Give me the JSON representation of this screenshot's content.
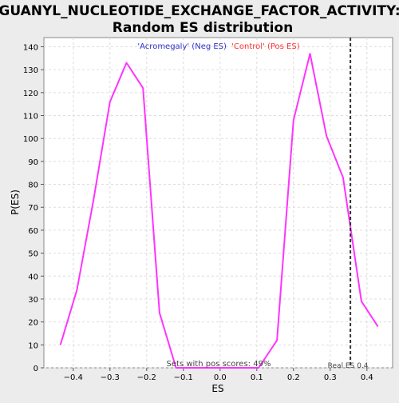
{
  "chart_data": {
    "type": "line",
    "title_line1": "GUANYL_NUCLEOTIDE_EXCHANGE_FACTOR_ACTIVITY:",
    "title_line2": "Random ES distribution",
    "xlabel": "ES",
    "ylabel": "P(ES)",
    "xlim": [
      -0.48,
      0.47
    ],
    "ylim": [
      0,
      144
    ],
    "x_ticks": [
      -0.4,
      -0.3,
      -0.2,
      -0.1,
      0.0,
      0.1,
      0.2,
      0.3,
      0.4
    ],
    "x_tick_labels": [
      "−0.4",
      "−0.3",
      "−0.2",
      "−0.1",
      "0.0",
      "0.1",
      "0.2",
      "0.3",
      "0.4"
    ],
    "y_ticks": [
      0,
      10,
      20,
      30,
      40,
      50,
      60,
      70,
      80,
      90,
      100,
      110,
      120,
      130,
      140
    ],
    "grid": true,
    "legend": {
      "neg_label": "'Acromegaly' (Neg ES)",
      "pos_label": "'Control' (Pos ES)",
      "placement": "top-center"
    },
    "series": [
      {
        "x": [
          -0.435,
          -0.39,
          -0.345,
          -0.3,
          -0.255,
          -0.21,
          -0.165,
          -0.12,
          -0.075,
          -0.03,
          0.015,
          0.06,
          0.105,
          0.155,
          0.2,
          0.245,
          0.29,
          0.335,
          0.385,
          0.43
        ],
        "y": [
          10,
          34,
          73,
          116,
          133,
          122,
          24,
          0,
          0,
          0,
          0,
          0,
          0,
          12,
          108,
          137,
          101,
          83,
          29,
          18
        ]
      }
    ],
    "real_es": 0.355,
    "real_es_label": "Real ES 0.4",
    "annotation": "Sets with pos scores: 49%",
    "colors": {
      "line": "#ff33ff",
      "neg_label": "#3333cc",
      "pos_label": "#ff3333",
      "marker_line": "#333333",
      "grid": "#dddddd",
      "background": "#ececec",
      "plot_background": "#ffffff"
    }
  }
}
